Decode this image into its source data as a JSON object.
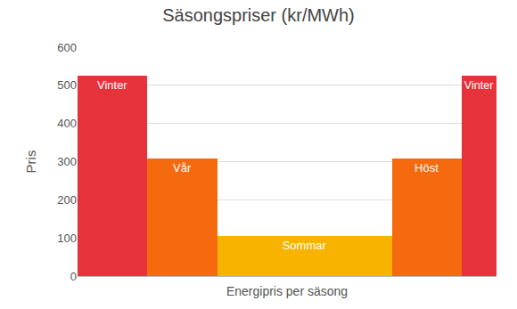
{
  "chart_data": {
    "type": "bar",
    "title": "Säsongspriser (kr/MWh)",
    "x_label": "Energipris per säsong",
    "y_label": "Pris",
    "categories": [
      "Vinter",
      "Vår",
      "Sommar",
      "Höst",
      "Vinter"
    ],
    "values": [
      525,
      308,
      105,
      308,
      525
    ],
    "widths": [
      2,
      2,
      5,
      2,
      1
    ],
    "colors": [
      "#e5323b",
      "#f56a0f",
      "#f8b200",
      "#f56a0f",
      "#e5323b"
    ],
    "ylim": [
      0,
      600
    ],
    "yticks": [
      0,
      100,
      200,
      300,
      400,
      500,
      600
    ],
    "grid": true,
    "tick_labels": "y"
  }
}
